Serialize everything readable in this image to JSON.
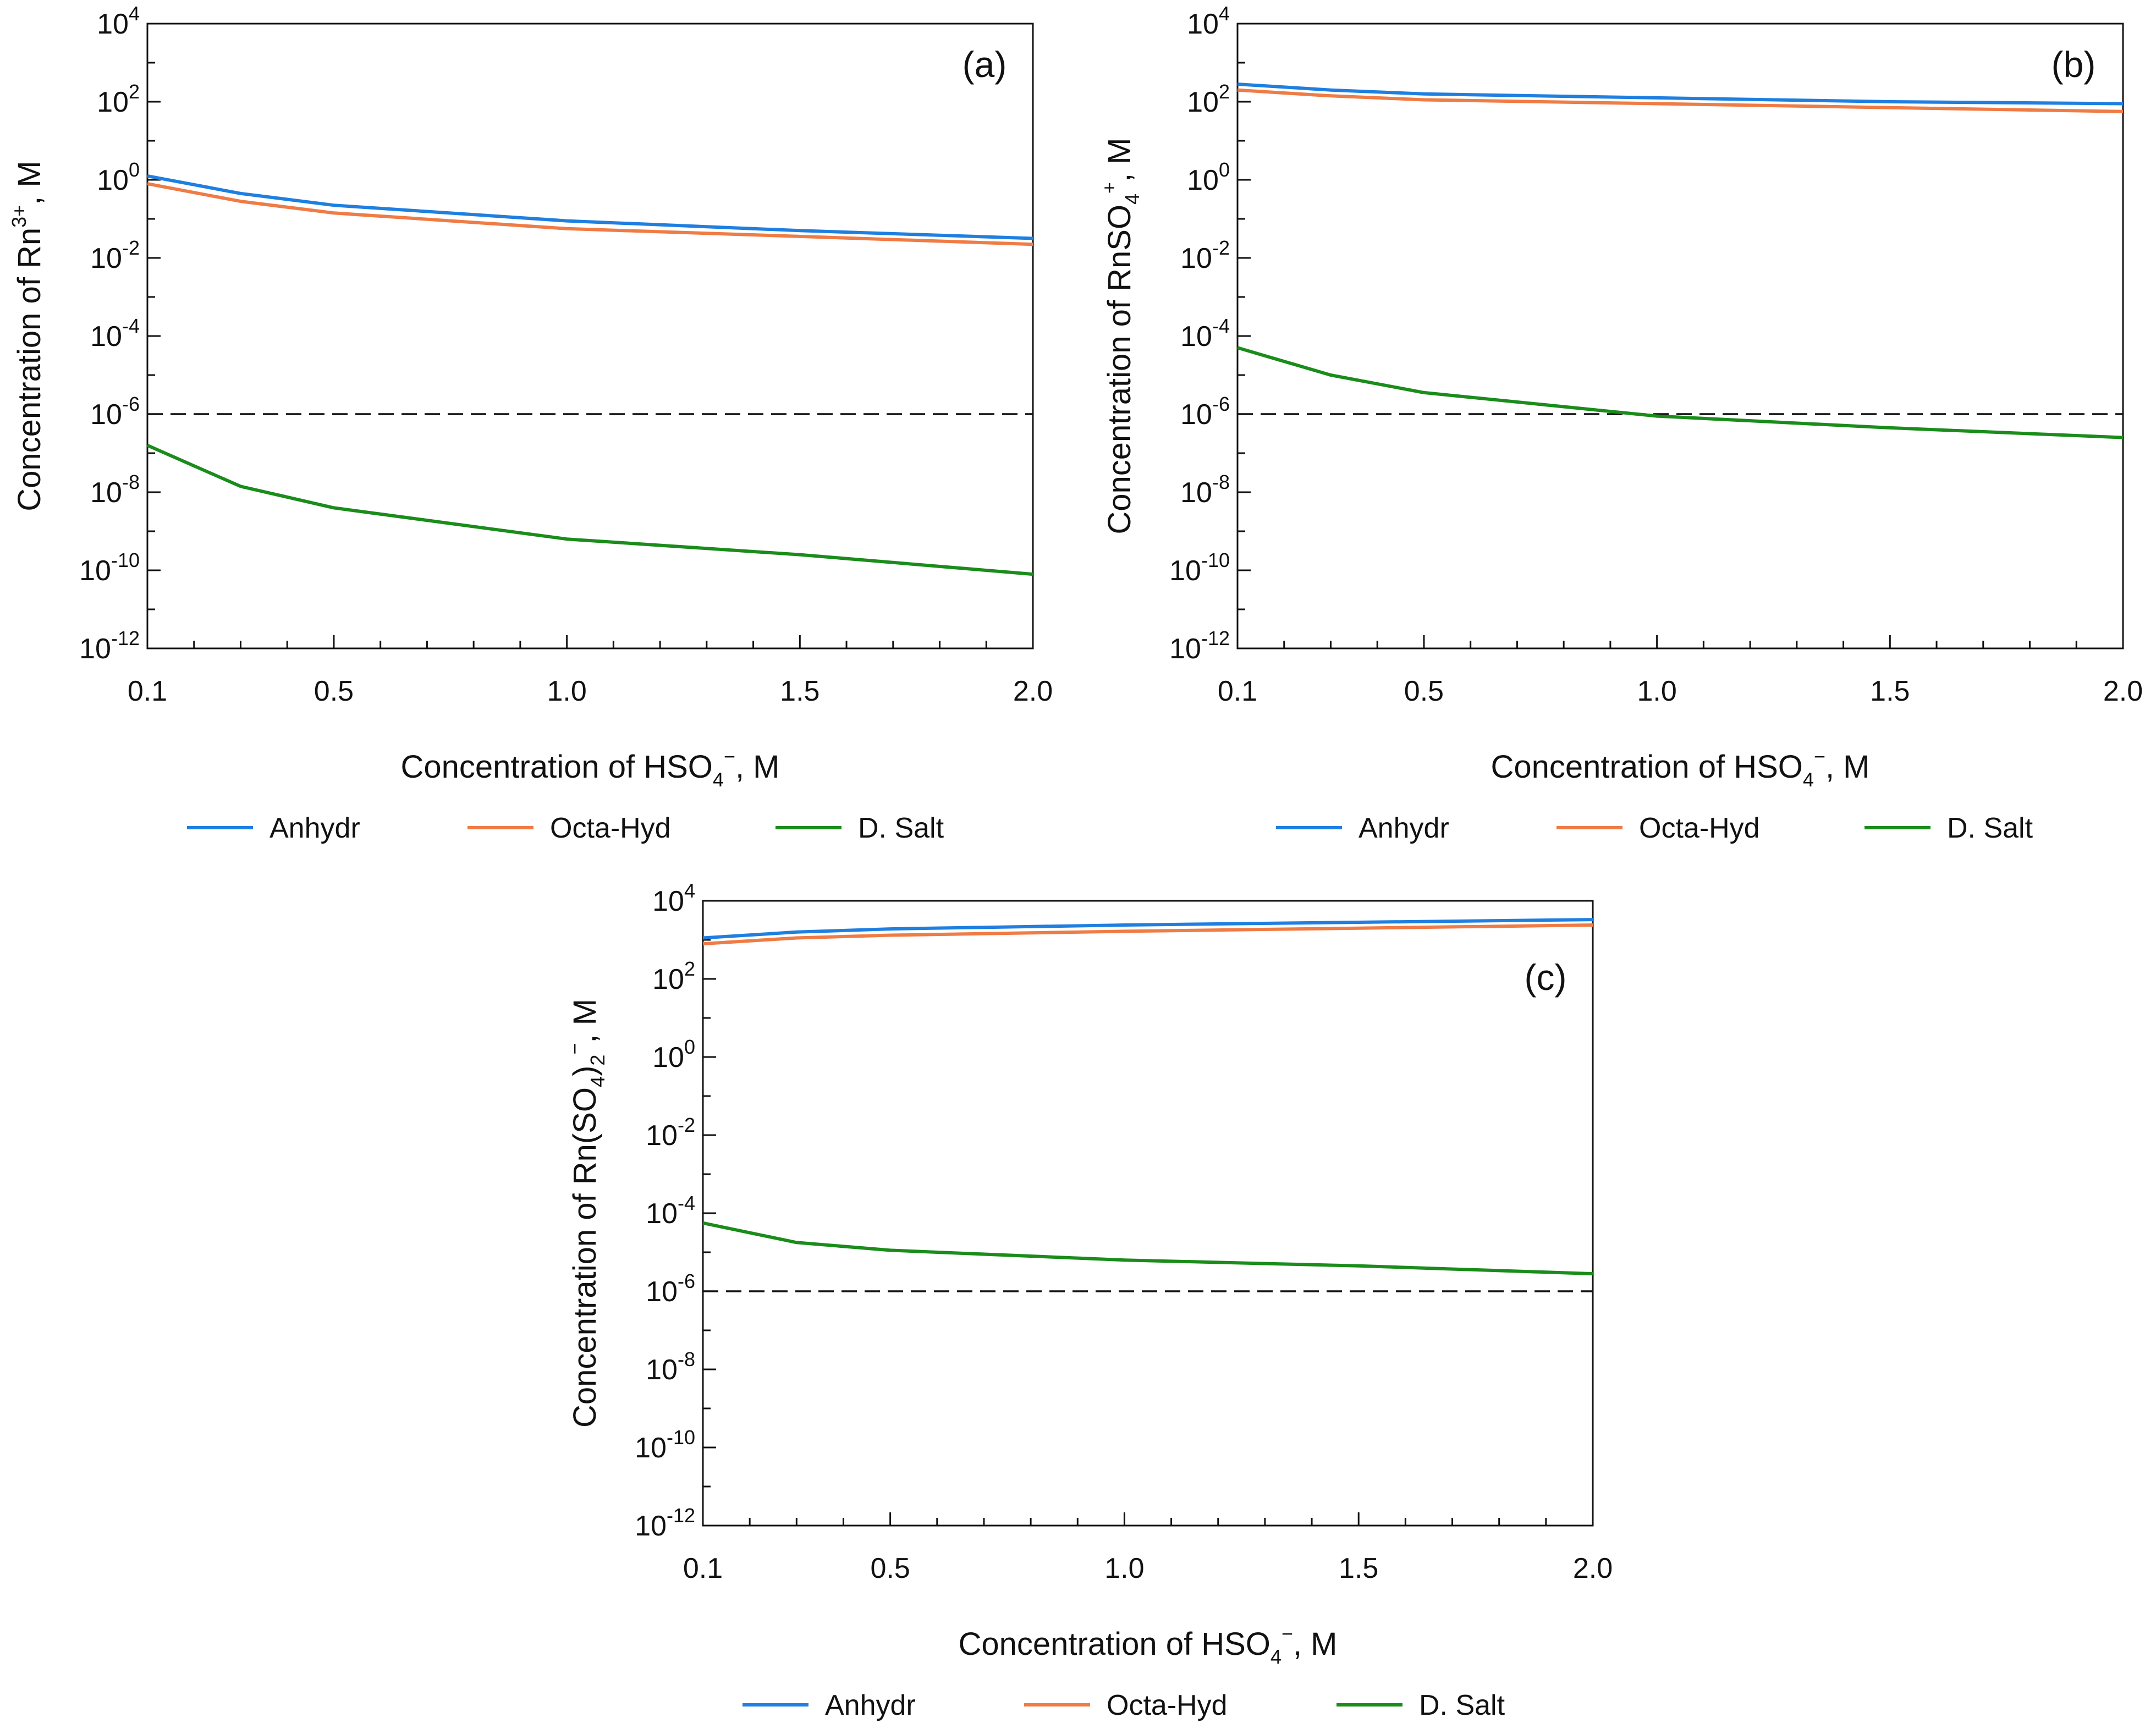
{
  "colors": {
    "anhydr": "#1f7fe0",
    "octa_hyd": "#ef7b45",
    "d_salt": "#1a8c1a",
    "axis": "#111111",
    "threshold": "#111111"
  },
  "legend": [
    "Anhydr",
    "Octa-Hyd",
    "D. Salt"
  ],
  "xlabel_prefix": "Concentration of HSO",
  "xlabel_sub": "4",
  "xlabel_sup": "−",
  "xlabel_suffix": ", M",
  "chart_data": [
    {
      "type": "line",
      "panel": "(a)",
      "ylabel": {
        "prefix": "Concentration of Rn",
        "sup": "3+",
        "suffix": ", M"
      },
      "x": [
        0.1,
        0.3,
        0.5,
        1.0,
        1.5,
        2.0
      ],
      "xlim": [
        0.1,
        2.0
      ],
      "xticks": [
        "0.1",
        "0.5",
        "1.0",
        "1.5",
        "2.0"
      ],
      "ylim_log10": [
        -12,
        4
      ],
      "yticks_exp": [
        "4",
        "2",
        "0",
        "-2",
        "-4",
        "-6",
        "-8",
        "-10",
        "-12"
      ],
      "ytick_base": "10",
      "threshold_log10": -6,
      "series": [
        {
          "name": "Anhydr",
          "values_log10": [
            0.1,
            -0.35,
            -0.65,
            -1.05,
            -1.3,
            -1.5
          ]
        },
        {
          "name": "Octa-Hyd",
          "values_log10": [
            -0.1,
            -0.55,
            -0.85,
            -1.25,
            -1.45,
            -1.65
          ]
        },
        {
          "name": "D. Salt",
          "values_log10": [
            -6.8,
            -7.85,
            -8.4,
            -9.2,
            -9.6,
            -10.1
          ]
        }
      ]
    },
    {
      "type": "line",
      "panel": "(b)",
      "ylabel": {
        "prefix": "Concentration of RnSO",
        "sub": "4",
        "sup": "+",
        "suffix": ", M"
      },
      "x": [
        0.1,
        0.3,
        0.5,
        1.0,
        1.5,
        2.0
      ],
      "xlim": [
        0.1,
        2.0
      ],
      "xticks": [
        "0.1",
        "0.5",
        "1.0",
        "1.5",
        "2.0"
      ],
      "ylim_log10": [
        -12,
        4
      ],
      "yticks_exp": [
        "4",
        "2",
        "0",
        "-2",
        "-4",
        "-6",
        "-8",
        "-10",
        "-12"
      ],
      "ytick_base": "10",
      "threshold_log10": -6,
      "series": [
        {
          "name": "Anhydr",
          "values_log10": [
            2.45,
            2.3,
            2.2,
            2.1,
            2.0,
            1.95
          ]
        },
        {
          "name": "Octa-Hyd",
          "values_log10": [
            2.3,
            2.15,
            2.05,
            1.95,
            1.85,
            1.75
          ]
        },
        {
          "name": "D. Salt",
          "values_log10": [
            -4.3,
            -5.0,
            -5.45,
            -6.05,
            -6.35,
            -6.6
          ]
        }
      ]
    },
    {
      "type": "line",
      "panel": "(c)",
      "ylabel": {
        "prefix": "Concentration of Rn(SO",
        "sub": "4",
        "mid": ")",
        "sub2": "2",
        "sup": "−",
        "suffix": ", M"
      },
      "x": [
        0.1,
        0.3,
        0.5,
        1.0,
        1.5,
        2.0
      ],
      "xlim": [
        0.1,
        2.0
      ],
      "xticks": [
        "0.1",
        "0.5",
        "1.0",
        "1.5",
        "2.0"
      ],
      "ylim_log10": [
        -12,
        4
      ],
      "yticks_exp": [
        "4",
        "2",
        "0",
        "-2",
        "-4",
        "-6",
        "-8",
        "-10",
        "-12"
      ],
      "ytick_base": "10",
      "threshold_log10": -6,
      "series": [
        {
          "name": "Anhydr",
          "values_log10": [
            3.05,
            3.2,
            3.28,
            3.38,
            3.45,
            3.52
          ]
        },
        {
          "name": "Octa-Hyd",
          "values_log10": [
            2.9,
            3.05,
            3.12,
            3.22,
            3.3,
            3.38
          ]
        },
        {
          "name": "D. Salt",
          "values_log10": [
            -4.25,
            -4.75,
            -4.95,
            -5.2,
            -5.35,
            -5.55
          ]
        }
      ]
    }
  ]
}
